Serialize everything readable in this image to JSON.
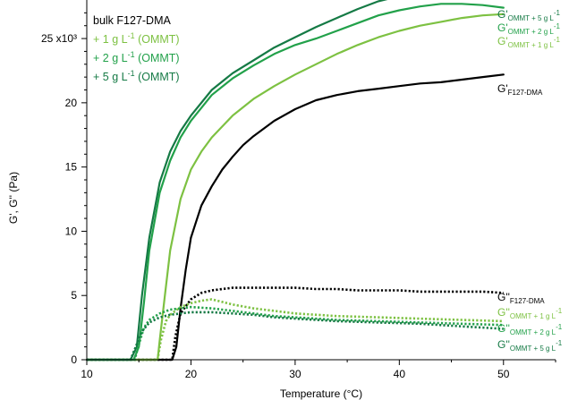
{
  "chart_data": {
    "type": "line",
    "xlabel": "Temperature (°C)",
    "ylabel": "G', G'' (Pa)",
    "xlim": [
      10,
      55
    ],
    "ylim": [
      0,
      28
    ],
    "x_ticks": [
      10,
      20,
      30,
      40,
      50
    ],
    "y_ticks": [
      0,
      5,
      10,
      15,
      20,
      25
    ],
    "y_tick_labels": [
      "0",
      "5",
      "10",
      "15",
      "20",
      "25 x10³"
    ],
    "y_multiplier": "x10³",
    "grid": false,
    "legend_position": "top-left",
    "legend": [
      {
        "text": "bulk F127-DMA",
        "color": "#000000"
      },
      {
        "text": "+ 1 g L",
        "sup": "-1",
        "suffix": " (OMMT)",
        "color": "#7dc142"
      },
      {
        "text": "+ 2 g L",
        "sup": "-1",
        "suffix": " (OMMT)",
        "color": "#22a14a"
      },
      {
        "text": "+ 5 g L",
        "sup": "-1",
        "suffix": " (OMMT)",
        "color": "#157a45"
      }
    ],
    "series": [
      {
        "name": "G'F127-DMA",
        "label_main": "G'",
        "label_sub": "F127-DMA",
        "color": "#000000",
        "style": "solid",
        "x": [
          10,
          18.2,
          18.6,
          19,
          19.5,
          20,
          21,
          22,
          23,
          24,
          25,
          26,
          28,
          30,
          32,
          34,
          36,
          38,
          40,
          42,
          44,
          46,
          48,
          50
        ],
        "y": [
          0,
          0,
          1.0,
          4.0,
          7.0,
          9.5,
          12.0,
          13.5,
          14.8,
          15.8,
          16.7,
          17.4,
          18.6,
          19.5,
          20.2,
          20.6,
          20.9,
          21.1,
          21.3,
          21.5,
          21.6,
          21.8,
          22.0,
          22.2
        ]
      },
      {
        "name": "G'OMMT + 1 g L-1",
        "label_main": "G'",
        "label_sub": "OMMT + 1 g L",
        "label_sup": "-1",
        "color": "#7dc142",
        "style": "solid",
        "x": [
          10,
          16.8,
          17.0,
          17.5,
          18,
          19,
          20,
          21,
          22,
          24,
          26,
          28,
          30,
          32,
          34,
          36,
          38,
          40,
          42,
          44,
          46,
          48,
          50
        ],
        "y": [
          0,
          0,
          1.5,
          5.0,
          8.5,
          12.5,
          14.8,
          16.2,
          17.3,
          19.0,
          20.3,
          21.3,
          22.2,
          23.0,
          23.8,
          24.5,
          25.1,
          25.6,
          26.0,
          26.3,
          26.6,
          26.8,
          26.9
        ]
      },
      {
        "name": "G'OMMT + 2 g L-1",
        "label_main": "G'",
        "label_sub": "OMMT + 2 g L",
        "label_sup": "-1",
        "color": "#22a14a",
        "style": "solid",
        "x": [
          10,
          14.5,
          15,
          15.5,
          16,
          17,
          18,
          19,
          20,
          22,
          24,
          26,
          28,
          30,
          32,
          34,
          36,
          38,
          40,
          42,
          44,
          46,
          48,
          50
        ],
        "y": [
          0,
          0,
          1.0,
          4.5,
          8.5,
          13.0,
          15.5,
          17.3,
          18.6,
          20.6,
          21.9,
          22.9,
          23.8,
          24.5,
          25.0,
          25.6,
          26.2,
          26.8,
          27.2,
          27.5,
          27.7,
          27.7,
          27.6,
          27.4
        ]
      },
      {
        "name": "G'OMMT + 5 g L-1",
        "label_main": "G'",
        "label_sub": "OMMT + 5 g L",
        "label_sup": "-1",
        "color": "#157a45",
        "style": "solid",
        "x": [
          10,
          14.2,
          14.8,
          15.3,
          16,
          17,
          18,
          19,
          20,
          22,
          24,
          26,
          28,
          30,
          32,
          34,
          36,
          38,
          40,
          42,
          44,
          46,
          48,
          50
        ],
        "y": [
          0,
          0,
          1.0,
          5.0,
          9.5,
          13.8,
          16.2,
          17.8,
          19.0,
          21.0,
          22.3,
          23.3,
          24.3,
          25.1,
          25.9,
          26.6,
          27.3,
          27.9,
          28.3,
          28.6,
          28.7,
          28.6,
          28.3,
          28.2
        ]
      },
      {
        "name": "G''F127-DMA",
        "label_main": "G''",
        "label_sub": "F127-DMA",
        "color": "#000000",
        "style": "dotted",
        "x": [
          10,
          18.2,
          18.5,
          19,
          20,
          21,
          22,
          23,
          24,
          26,
          28,
          30,
          32,
          34,
          36,
          38,
          40,
          42,
          44,
          46,
          48,
          50
        ],
        "y": [
          0,
          0,
          1.8,
          3.6,
          4.7,
          5.2,
          5.4,
          5.5,
          5.6,
          5.6,
          5.6,
          5.6,
          5.5,
          5.5,
          5.4,
          5.4,
          5.4,
          5.3,
          5.3,
          5.3,
          5.3,
          5.2
        ]
      },
      {
        "name": "G''OMMT + 1 g L-1",
        "label_main": "G''",
        "label_sub": "OMMT + 1 g L",
        "label_sup": "-1",
        "color": "#7dc142",
        "style": "dotted",
        "x": [
          10,
          16.8,
          17.1,
          17.6,
          18,
          19,
          20,
          21,
          22,
          23,
          24,
          26,
          28,
          30,
          34,
          38,
          42,
          46,
          50
        ],
        "y": [
          0,
          0,
          1.5,
          3.0,
          3.5,
          4.1,
          4.4,
          4.6,
          4.7,
          4.5,
          4.3,
          4.0,
          3.8,
          3.6,
          3.4,
          3.3,
          3.2,
          3.1,
          3.0
        ]
      },
      {
        "name": "G''OMMT + 2 g L-1",
        "label_main": "G''",
        "label_sub": "OMMT + 2 g L",
        "label_sup": "-1",
        "color": "#22a14a",
        "style": "dotted",
        "x": [
          10,
          14.6,
          15,
          15.5,
          16,
          17,
          18,
          19,
          20,
          22,
          24,
          26,
          28,
          30,
          34,
          38,
          42,
          46,
          50
        ],
        "y": [
          0,
          0,
          1.2,
          2.5,
          3.1,
          3.6,
          3.9,
          4.0,
          4.1,
          4.0,
          3.8,
          3.6,
          3.4,
          3.3,
          3.1,
          3.0,
          2.9,
          2.8,
          2.7
        ]
      },
      {
        "name": "G''OMMT + 5 g L-1",
        "label_main": "G''",
        "label_sub": "OMMT + 5 g L",
        "label_sup": "-1",
        "color": "#157a45",
        "style": "dotted",
        "x": [
          10,
          14.2,
          14.7,
          15.3,
          16,
          17,
          18,
          19,
          20,
          22,
          24,
          26,
          28,
          30,
          34,
          38,
          42,
          46,
          50
        ],
        "y": [
          0,
          0,
          1.0,
          2.2,
          2.9,
          3.3,
          3.5,
          3.6,
          3.7,
          3.7,
          3.6,
          3.5,
          3.3,
          3.2,
          3.0,
          2.9,
          2.8,
          2.6,
          2.4
        ]
      }
    ]
  }
}
